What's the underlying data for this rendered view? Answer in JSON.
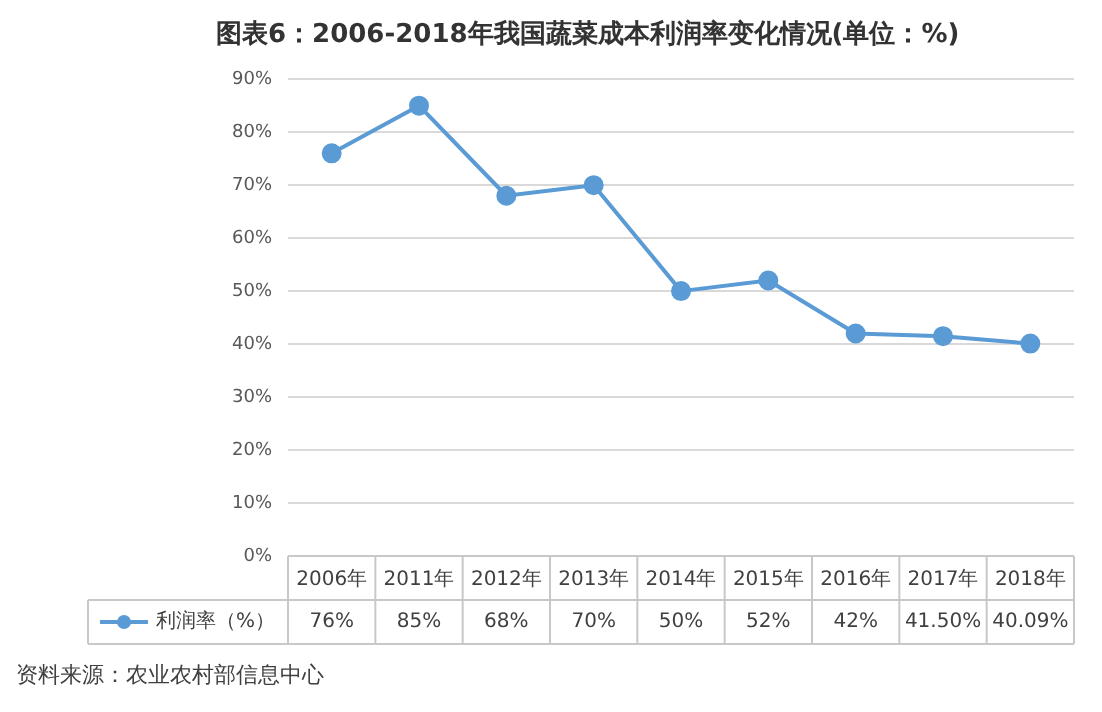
{
  "chart_data": {
    "type": "line",
    "title": "图表6：2006-2018年我国蔬菜成本利润率变化情况(单位：%)",
    "categories": [
      "2006年",
      "2011年",
      "2012年",
      "2013年",
      "2014年",
      "2015年",
      "2016年",
      "2017年",
      "2018年"
    ],
    "series": [
      {
        "name": "利润率（%）",
        "color": "#5b9bd5",
        "values": [
          76,
          85,
          68,
          70,
          50,
          52,
          42,
          41.5,
          40.09
        ],
        "value_labels": [
          "76%",
          "85%",
          "68%",
          "70%",
          "50%",
          "52%",
          "42%",
          "41.50%",
          "40.09%"
        ]
      }
    ],
    "ylim": [
      0,
      90
    ],
    "yticks": [
      {
        "value": 0,
        "label": "0%"
      },
      {
        "value": 10,
        "label": "10%"
      },
      {
        "value": 20,
        "label": "20%"
      },
      {
        "value": 30,
        "label": "30%"
      },
      {
        "value": 40,
        "label": "40%"
      },
      {
        "value": 50,
        "label": "50%"
      },
      {
        "value": 60,
        "label": "60%"
      },
      {
        "value": 70,
        "label": "70%"
      },
      {
        "value": 80,
        "label": "80%"
      },
      {
        "value": 90,
        "label": "90%"
      }
    ],
    "grid": "y",
    "marker": "circle",
    "line_style": "solid",
    "annotations": [
      "资料来源：农业农村部信息中心"
    ]
  }
}
